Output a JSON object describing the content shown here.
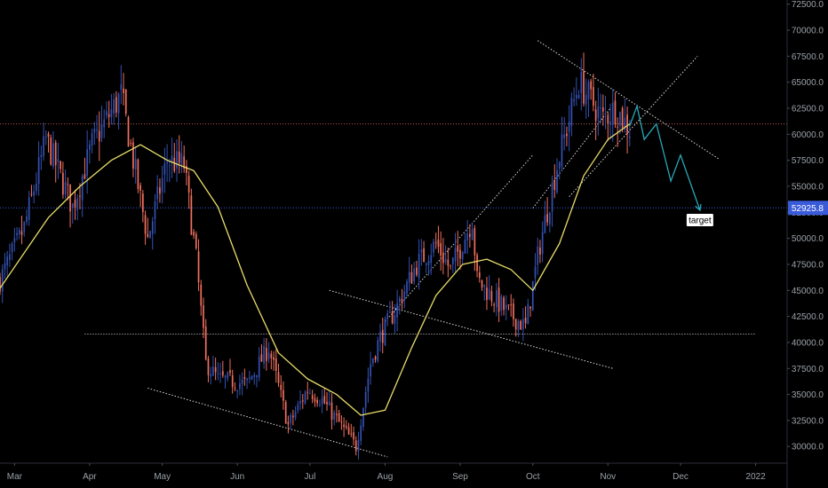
{
  "chart_data": {
    "type": "candlestick",
    "symbol": "",
    "y_axis_position": "right",
    "ylim": [
      28400,
      72900
    ],
    "y_ticks": [
      "72500.0",
      "70000.0",
      "67500.0",
      "65000.0",
      "62500.0",
      "60000.0",
      "57500.0",
      "55000.0",
      "52500.0",
      "50000.0",
      "47500.0",
      "45000.0",
      "42500.0",
      "40000.0",
      "37500.0",
      "35000.0",
      "32500.0",
      "30000.0"
    ],
    "x_ticks": [
      "Mar",
      "Apr",
      "May",
      "Jun",
      "Jul",
      "Aug",
      "Sep",
      "Oct",
      "Nov",
      "Dec",
      "2022"
    ],
    "x_tick_dates": [
      "2021-03-01",
      "2021-04-01",
      "2021-05-01",
      "2021-06-01",
      "2021-07-01",
      "2021-08-01",
      "2021-09-01",
      "2021-10-01",
      "2021-11-01",
      "2021-12-01",
      "2022-01-01"
    ],
    "x_range": [
      "2021-02-23",
      "2022-01-14"
    ],
    "current_price_label": "52925.8",
    "current_price": 52925.8,
    "reference_level": 61000,
    "annotation_target": "target",
    "colors": {
      "background": "#000000",
      "up": "#3451b2",
      "down": "#f2705e",
      "ma": "#e8dd6a",
      "projection": "#2aa7b8",
      "trendline": "#d8d8d8",
      "price_line": "#3a5bd9",
      "ref_line": "#f2705e",
      "axis_text": "#9aa0a6"
    },
    "series": [
      {
        "type": "candles",
        "anchors": [
          [
            "2021-02-23",
            46000
          ],
          [
            "2021-03-05",
            51000
          ],
          [
            "2021-03-14",
            59500
          ],
          [
            "2021-03-25",
            53000
          ],
          [
            "2021-04-02",
            59000
          ],
          [
            "2021-04-14",
            63800
          ],
          [
            "2021-04-25",
            50000
          ],
          [
            "2021-05-03",
            57500
          ],
          [
            "2021-05-10",
            57000
          ],
          [
            "2021-05-15",
            48000
          ],
          [
            "2021-05-19",
            38000
          ],
          [
            "2021-05-24",
            36500
          ],
          [
            "2021-06-05",
            36000
          ],
          [
            "2021-06-14",
            39500
          ],
          [
            "2021-06-22",
            32000
          ],
          [
            "2021-06-30",
            35500
          ],
          [
            "2021-07-06",
            34500
          ],
          [
            "2021-07-20",
            30000
          ],
          [
            "2021-07-26",
            38000
          ],
          [
            "2021-07-30",
            40500
          ],
          [
            "2021-08-06",
            43500
          ],
          [
            "2021-08-14",
            47500
          ],
          [
            "2021-08-22",
            49500
          ],
          [
            "2021-08-28",
            47000
          ],
          [
            "2021-09-06",
            51800
          ],
          [
            "2021-09-08",
            46000
          ],
          [
            "2021-09-20",
            43000
          ],
          [
            "2021-09-28",
            41500
          ],
          [
            "2021-10-04",
            49500
          ],
          [
            "2021-10-11",
            57000
          ],
          [
            "2021-10-20",
            65000
          ],
          [
            "2021-10-30",
            61500
          ],
          [
            "2021-11-04",
            62500
          ],
          [
            "2021-11-10",
            60500
          ]
        ]
      },
      {
        "type": "moving_average",
        "name": "",
        "points": [
          [
            "2021-02-23",
            45200
          ],
          [
            "2021-03-15",
            52000
          ],
          [
            "2021-03-28",
            55000
          ],
          [
            "2021-04-10",
            57500
          ],
          [
            "2021-04-22",
            59000
          ],
          [
            "2021-05-03",
            57500
          ],
          [
            "2021-05-14",
            56500
          ],
          [
            "2021-05-24",
            53000
          ],
          [
            "2021-06-05",
            45500
          ],
          [
            "2021-06-18",
            39000
          ],
          [
            "2021-06-30",
            36500
          ],
          [
            "2021-07-12",
            35000
          ],
          [
            "2021-07-22",
            33000
          ],
          [
            "2021-08-01",
            33500
          ],
          [
            "2021-08-12",
            39500
          ],
          [
            "2021-08-22",
            44500
          ],
          [
            "2021-09-02",
            47500
          ],
          [
            "2021-09-12",
            48000
          ],
          [
            "2021-09-22",
            47000
          ],
          [
            "2021-10-01",
            45000
          ],
          [
            "2021-10-12",
            49500
          ],
          [
            "2021-10-22",
            56000
          ],
          [
            "2021-11-01",
            59500
          ],
          [
            "2021-11-10",
            61000
          ]
        ]
      },
      {
        "type": "projection",
        "points": [
          [
            "2021-11-10",
            60800
          ],
          [
            "2021-11-13",
            62700
          ],
          [
            "2021-11-16",
            59500
          ],
          [
            "2021-11-21",
            61000
          ],
          [
            "2021-11-27",
            55500
          ],
          [
            "2021-12-01",
            58000
          ],
          [
            "2021-12-09",
            52700
          ]
        ]
      }
    ],
    "trendlines": [
      [
        [
          "2021-04-25",
          35600
        ],
        [
          "2021-08-02",
          29000
        ]
      ],
      [
        [
          "2021-07-09",
          45000
        ],
        [
          "2021-11-03",
          37500
        ]
      ],
      [
        [
          "2021-08-01",
          42000
        ],
        [
          "2021-10-01",
          58000
        ]
      ],
      [
        [
          "2021-10-03",
          69000
        ],
        [
          "2021-12-17",
          57600
        ]
      ],
      [
        [
          "2021-10-16",
          54000
        ],
        [
          "2021-12-08",
          67500
        ]
      ],
      [
        [
          "2021-10-01",
          52900
        ],
        [
          "2021-11-02",
          62500
        ]
      ]
    ],
    "support_level": [
      [
        "2021-03-30",
        40800
      ],
      [
        "2022-01-01",
        40800
      ]
    ]
  }
}
